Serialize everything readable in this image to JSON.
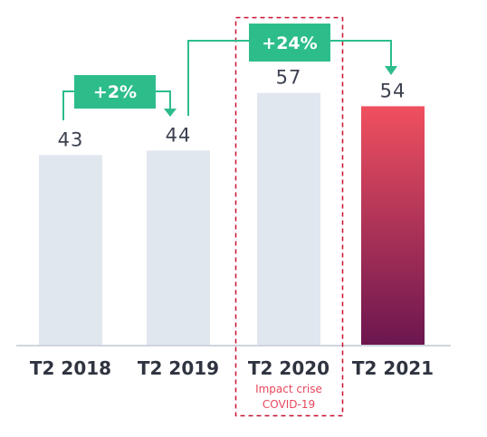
{
  "chart_data": {
    "type": "bar",
    "categories": [
      "T2 2018",
      "T2 2019",
      "T2 2020",
      "T2 2021"
    ],
    "values": [
      43,
      44,
      57,
      54
    ],
    "data_labels": [
      "43",
      "44",
      "57",
      "54"
    ],
    "highlight_index": 3,
    "grid": false,
    "colors": {
      "bar": "#e1e7ef",
      "highlight_top": "#f0505f",
      "highlight_bottom": "#6b1650",
      "arrow": "#2dbd8b",
      "axis": "#cfd5de",
      "covid_box": "#c8102e"
    },
    "annotations": [
      {
        "type": "change",
        "label": "+2%",
        "from": "T2 2018",
        "to": "T2 2019"
      },
      {
        "type": "change",
        "label": "+24%",
        "from": "T2 2019",
        "to": "T2 2021"
      }
    ],
    "highlight_note": {
      "category": "T2 2020",
      "lines": [
        "Impact crise",
        "COVID-19"
      ]
    }
  }
}
